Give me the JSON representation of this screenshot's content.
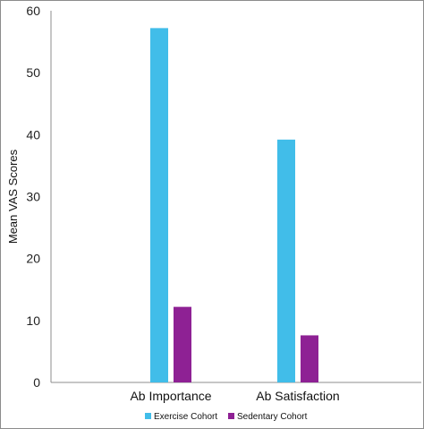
{
  "chart_data": {
    "type": "bar",
    "title": "",
    "xlabel": "",
    "ylabel": "Mean VAS Scores",
    "ylim": [
      0,
      60
    ],
    "yticks": [
      0,
      10,
      20,
      30,
      40,
      50,
      60
    ],
    "grid": false,
    "legend_position": "bottom",
    "categories": [
      "Ab Importance",
      "Ab Satisfaction"
    ],
    "series": [
      {
        "name": "Exercise Cohort",
        "color": "#41bde9",
        "values": [
          57.2,
          39.2
        ]
      },
      {
        "name": "Sedentary Cohort",
        "color": "#8e2194",
        "values": [
          12.2,
          7.6
        ]
      }
    ]
  }
}
